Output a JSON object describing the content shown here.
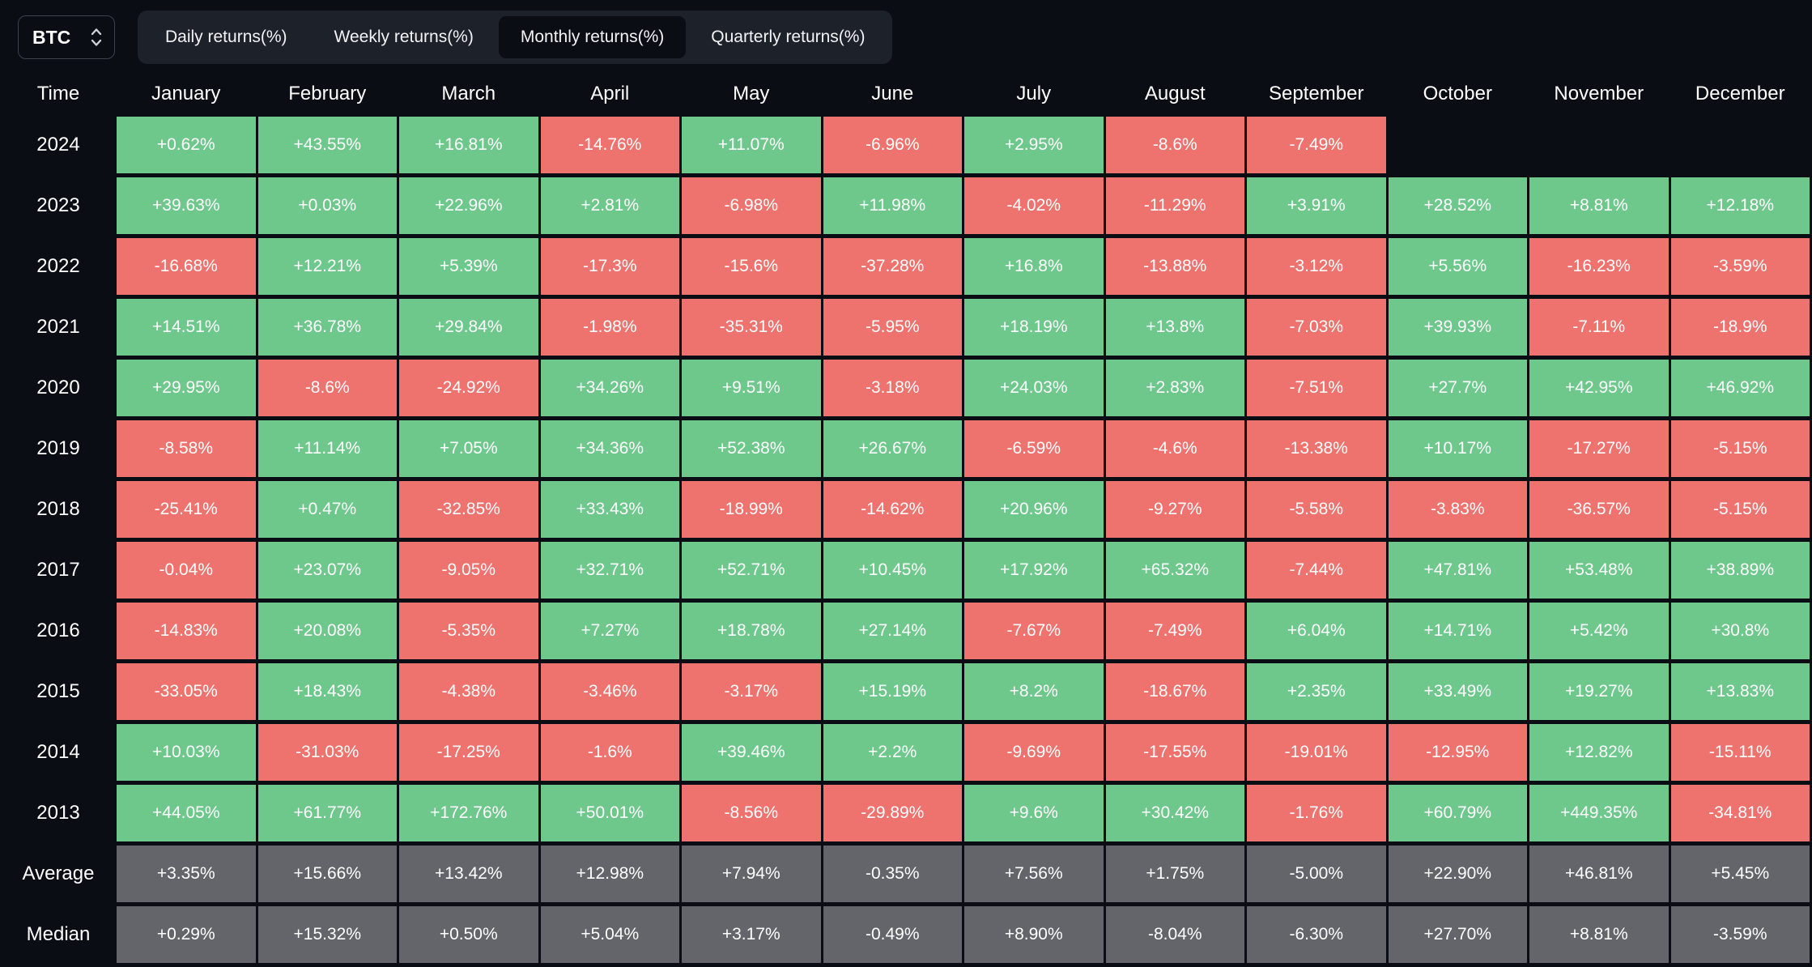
{
  "selector": {
    "value": "BTC"
  },
  "tabs": [
    {
      "label": "Daily returns(%)",
      "active": false
    },
    {
      "label": "Weekly returns(%)",
      "active": false
    },
    {
      "label": "Monthly returns(%)",
      "active": true
    },
    {
      "label": "Quarterly returns(%)",
      "active": false
    }
  ],
  "colors": {
    "background": "#0a0d13",
    "positive": "#6ec88c",
    "negative": "#ee736e",
    "summary": "#64656b"
  },
  "table": {
    "time_header": "Time",
    "months": [
      "January",
      "February",
      "March",
      "April",
      "May",
      "June",
      "July",
      "August",
      "September",
      "October",
      "November",
      "December"
    ],
    "rows": [
      {
        "label": "2024",
        "type": "year",
        "values": [
          "+0.62%",
          "+43.55%",
          "+16.81%",
          "-14.76%",
          "+11.07%",
          "-6.96%",
          "+2.95%",
          "-8.6%",
          "-7.49%",
          "",
          "",
          ""
        ]
      },
      {
        "label": "2023",
        "type": "year",
        "values": [
          "+39.63%",
          "+0.03%",
          "+22.96%",
          "+2.81%",
          "-6.98%",
          "+11.98%",
          "-4.02%",
          "-11.29%",
          "+3.91%",
          "+28.52%",
          "+8.81%",
          "+12.18%"
        ]
      },
      {
        "label": "2022",
        "type": "year",
        "values": [
          "-16.68%",
          "+12.21%",
          "+5.39%",
          "-17.3%",
          "-15.6%",
          "-37.28%",
          "+16.8%",
          "-13.88%",
          "-3.12%",
          "+5.56%",
          "-16.23%",
          "-3.59%"
        ]
      },
      {
        "label": "2021",
        "type": "year",
        "values": [
          "+14.51%",
          "+36.78%",
          "+29.84%",
          "-1.98%",
          "-35.31%",
          "-5.95%",
          "+18.19%",
          "+13.8%",
          "-7.03%",
          "+39.93%",
          "-7.11%",
          "-18.9%"
        ]
      },
      {
        "label": "2020",
        "type": "year",
        "values": [
          "+29.95%",
          "-8.6%",
          "-24.92%",
          "+34.26%",
          "+9.51%",
          "-3.18%",
          "+24.03%",
          "+2.83%",
          "-7.51%",
          "+27.7%",
          "+42.95%",
          "+46.92%"
        ]
      },
      {
        "label": "2019",
        "type": "year",
        "values": [
          "-8.58%",
          "+11.14%",
          "+7.05%",
          "+34.36%",
          "+52.38%",
          "+26.67%",
          "-6.59%",
          "-4.6%",
          "-13.38%",
          "+10.17%",
          "-17.27%",
          "-5.15%"
        ]
      },
      {
        "label": "2018",
        "type": "year",
        "values": [
          "-25.41%",
          "+0.47%",
          "-32.85%",
          "+33.43%",
          "-18.99%",
          "-14.62%",
          "+20.96%",
          "-9.27%",
          "-5.58%",
          "-3.83%",
          "-36.57%",
          "-5.15%"
        ]
      },
      {
        "label": "2017",
        "type": "year",
        "values": [
          "-0.04%",
          "+23.07%",
          "-9.05%",
          "+32.71%",
          "+52.71%",
          "+10.45%",
          "+17.92%",
          "+65.32%",
          "-7.44%",
          "+47.81%",
          "+53.48%",
          "+38.89%"
        ]
      },
      {
        "label": "2016",
        "type": "year",
        "values": [
          "-14.83%",
          "+20.08%",
          "-5.35%",
          "+7.27%",
          "+18.78%",
          "+27.14%",
          "-7.67%",
          "-7.49%",
          "+6.04%",
          "+14.71%",
          "+5.42%",
          "+30.8%"
        ]
      },
      {
        "label": "2015",
        "type": "year",
        "values": [
          "-33.05%",
          "+18.43%",
          "-4.38%",
          "-3.46%",
          "-3.17%",
          "+15.19%",
          "+8.2%",
          "-18.67%",
          "+2.35%",
          "+33.49%",
          "+19.27%",
          "+13.83%"
        ]
      },
      {
        "label": "2014",
        "type": "year",
        "values": [
          "+10.03%",
          "-31.03%",
          "-17.25%",
          "-1.6%",
          "+39.46%",
          "+2.2%",
          "-9.69%",
          "-17.55%",
          "-19.01%",
          "-12.95%",
          "+12.82%",
          "-15.11%"
        ]
      },
      {
        "label": "2013",
        "type": "year",
        "values": [
          "+44.05%",
          "+61.77%",
          "+172.76%",
          "+50.01%",
          "-8.56%",
          "-29.89%",
          "+9.6%",
          "+30.42%",
          "-1.76%",
          "+60.79%",
          "+449.35%",
          "-34.81%"
        ]
      },
      {
        "label": "Average",
        "type": "summary",
        "values": [
          "+3.35%",
          "+15.66%",
          "+13.42%",
          "+12.98%",
          "+7.94%",
          "-0.35%",
          "+7.56%",
          "+1.75%",
          "-5.00%",
          "+22.90%",
          "+46.81%",
          "+5.45%"
        ]
      },
      {
        "label": "Median",
        "type": "summary",
        "values": [
          "+0.29%",
          "+15.32%",
          "+0.50%",
          "+5.04%",
          "+3.17%",
          "-0.49%",
          "+8.90%",
          "-8.04%",
          "-6.30%",
          "+27.70%",
          "+8.81%",
          "-3.59%"
        ]
      }
    ]
  },
  "chart_data": {
    "type": "heatmap",
    "title": "BTC Monthly returns(%)",
    "x_categories": [
      "January",
      "February",
      "March",
      "April",
      "May",
      "June",
      "July",
      "August",
      "September",
      "October",
      "November",
      "December"
    ],
    "y_categories": [
      "2024",
      "2023",
      "2022",
      "2021",
      "2020",
      "2019",
      "2018",
      "2017",
      "2016",
      "2015",
      "2014",
      "2013",
      "Average",
      "Median"
    ],
    "values": [
      [
        0.62,
        43.55,
        16.81,
        -14.76,
        11.07,
        -6.96,
        2.95,
        -8.6,
        -7.49,
        null,
        null,
        null
      ],
      [
        39.63,
        0.03,
        22.96,
        2.81,
        -6.98,
        11.98,
        -4.02,
        -11.29,
        3.91,
        28.52,
        8.81,
        12.18
      ],
      [
        -16.68,
        12.21,
        5.39,
        -17.3,
        -15.6,
        -37.28,
        16.8,
        -13.88,
        -3.12,
        5.56,
        -16.23,
        -3.59
      ],
      [
        14.51,
        36.78,
        29.84,
        -1.98,
        -35.31,
        -5.95,
        18.19,
        13.8,
        -7.03,
        39.93,
        -7.11,
        -18.9
      ],
      [
        29.95,
        -8.6,
        -24.92,
        34.26,
        9.51,
        -3.18,
        24.03,
        2.83,
        -7.51,
        27.7,
        42.95,
        46.92
      ],
      [
        -8.58,
        11.14,
        7.05,
        34.36,
        52.38,
        26.67,
        -6.59,
        -4.6,
        -13.38,
        10.17,
        -17.27,
        -5.15
      ],
      [
        -25.41,
        0.47,
        -32.85,
        33.43,
        -18.99,
        -14.62,
        20.96,
        -9.27,
        -5.58,
        -3.83,
        -36.57,
        -5.15
      ],
      [
        -0.04,
        23.07,
        -9.05,
        32.71,
        52.71,
        10.45,
        17.92,
        65.32,
        -7.44,
        47.81,
        53.48,
        38.89
      ],
      [
        -14.83,
        20.08,
        -5.35,
        7.27,
        18.78,
        27.14,
        -7.67,
        -7.49,
        6.04,
        14.71,
        5.42,
        30.8
      ],
      [
        -33.05,
        18.43,
        -4.38,
        -3.46,
        -3.17,
        15.19,
        8.2,
        -18.67,
        2.35,
        33.49,
        19.27,
        13.83
      ],
      [
        10.03,
        -31.03,
        -17.25,
        -1.6,
        39.46,
        2.2,
        -9.69,
        -17.55,
        -19.01,
        -12.95,
        12.82,
        -15.11
      ],
      [
        44.05,
        61.77,
        172.76,
        50.01,
        -8.56,
        -29.89,
        9.6,
        30.42,
        -1.76,
        60.79,
        449.35,
        -34.81
      ],
      [
        3.35,
        15.66,
        13.42,
        12.98,
        7.94,
        -0.35,
        7.56,
        1.75,
        -5.0,
        22.9,
        46.81,
        5.45
      ],
      [
        0.29,
        15.32,
        0.5,
        5.04,
        3.17,
        -0.49,
        8.9,
        -8.04,
        -6.3,
        27.7,
        8.81,
        -3.59
      ]
    ],
    "legend": "green = positive month, red = negative month, gray = Average/Median summary rows"
  }
}
